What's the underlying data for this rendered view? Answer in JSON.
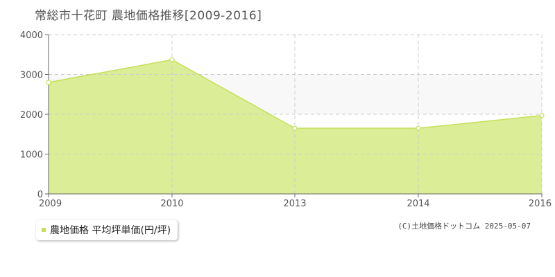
{
  "title": "常総市十花町 農地価格推移[2009-2016]",
  "legend": {
    "label": "農地価格 平均坪単価(円/坪)"
  },
  "credit": "(C)土地価格ドットコム 2025-05-07",
  "colors": {
    "fill": "#dbed96",
    "line": "#c5e05a",
    "band": "#f8f8f8",
    "grid": "#cccccc",
    "axis": "#666666",
    "marker": "#c5e05a"
  },
  "chart_data": {
    "type": "area",
    "title": "常総市十花町 農地価格推移[2009-2016]",
    "x": [
      "2009",
      "2010",
      "2013",
      "2014",
      "2016"
    ],
    "series": [
      {
        "name": "農地価格 平均坪単価(円/坪)",
        "values": [
          2800,
          3370,
          1650,
          1650,
          1970
        ]
      }
    ],
    "yticks": [
      "0",
      "1000",
      "2000",
      "3000",
      "4000"
    ],
    "ylim": [
      0,
      4000
    ],
    "xlabel": "",
    "ylabel": "",
    "grid": true,
    "legend_position": "bottom-left"
  }
}
